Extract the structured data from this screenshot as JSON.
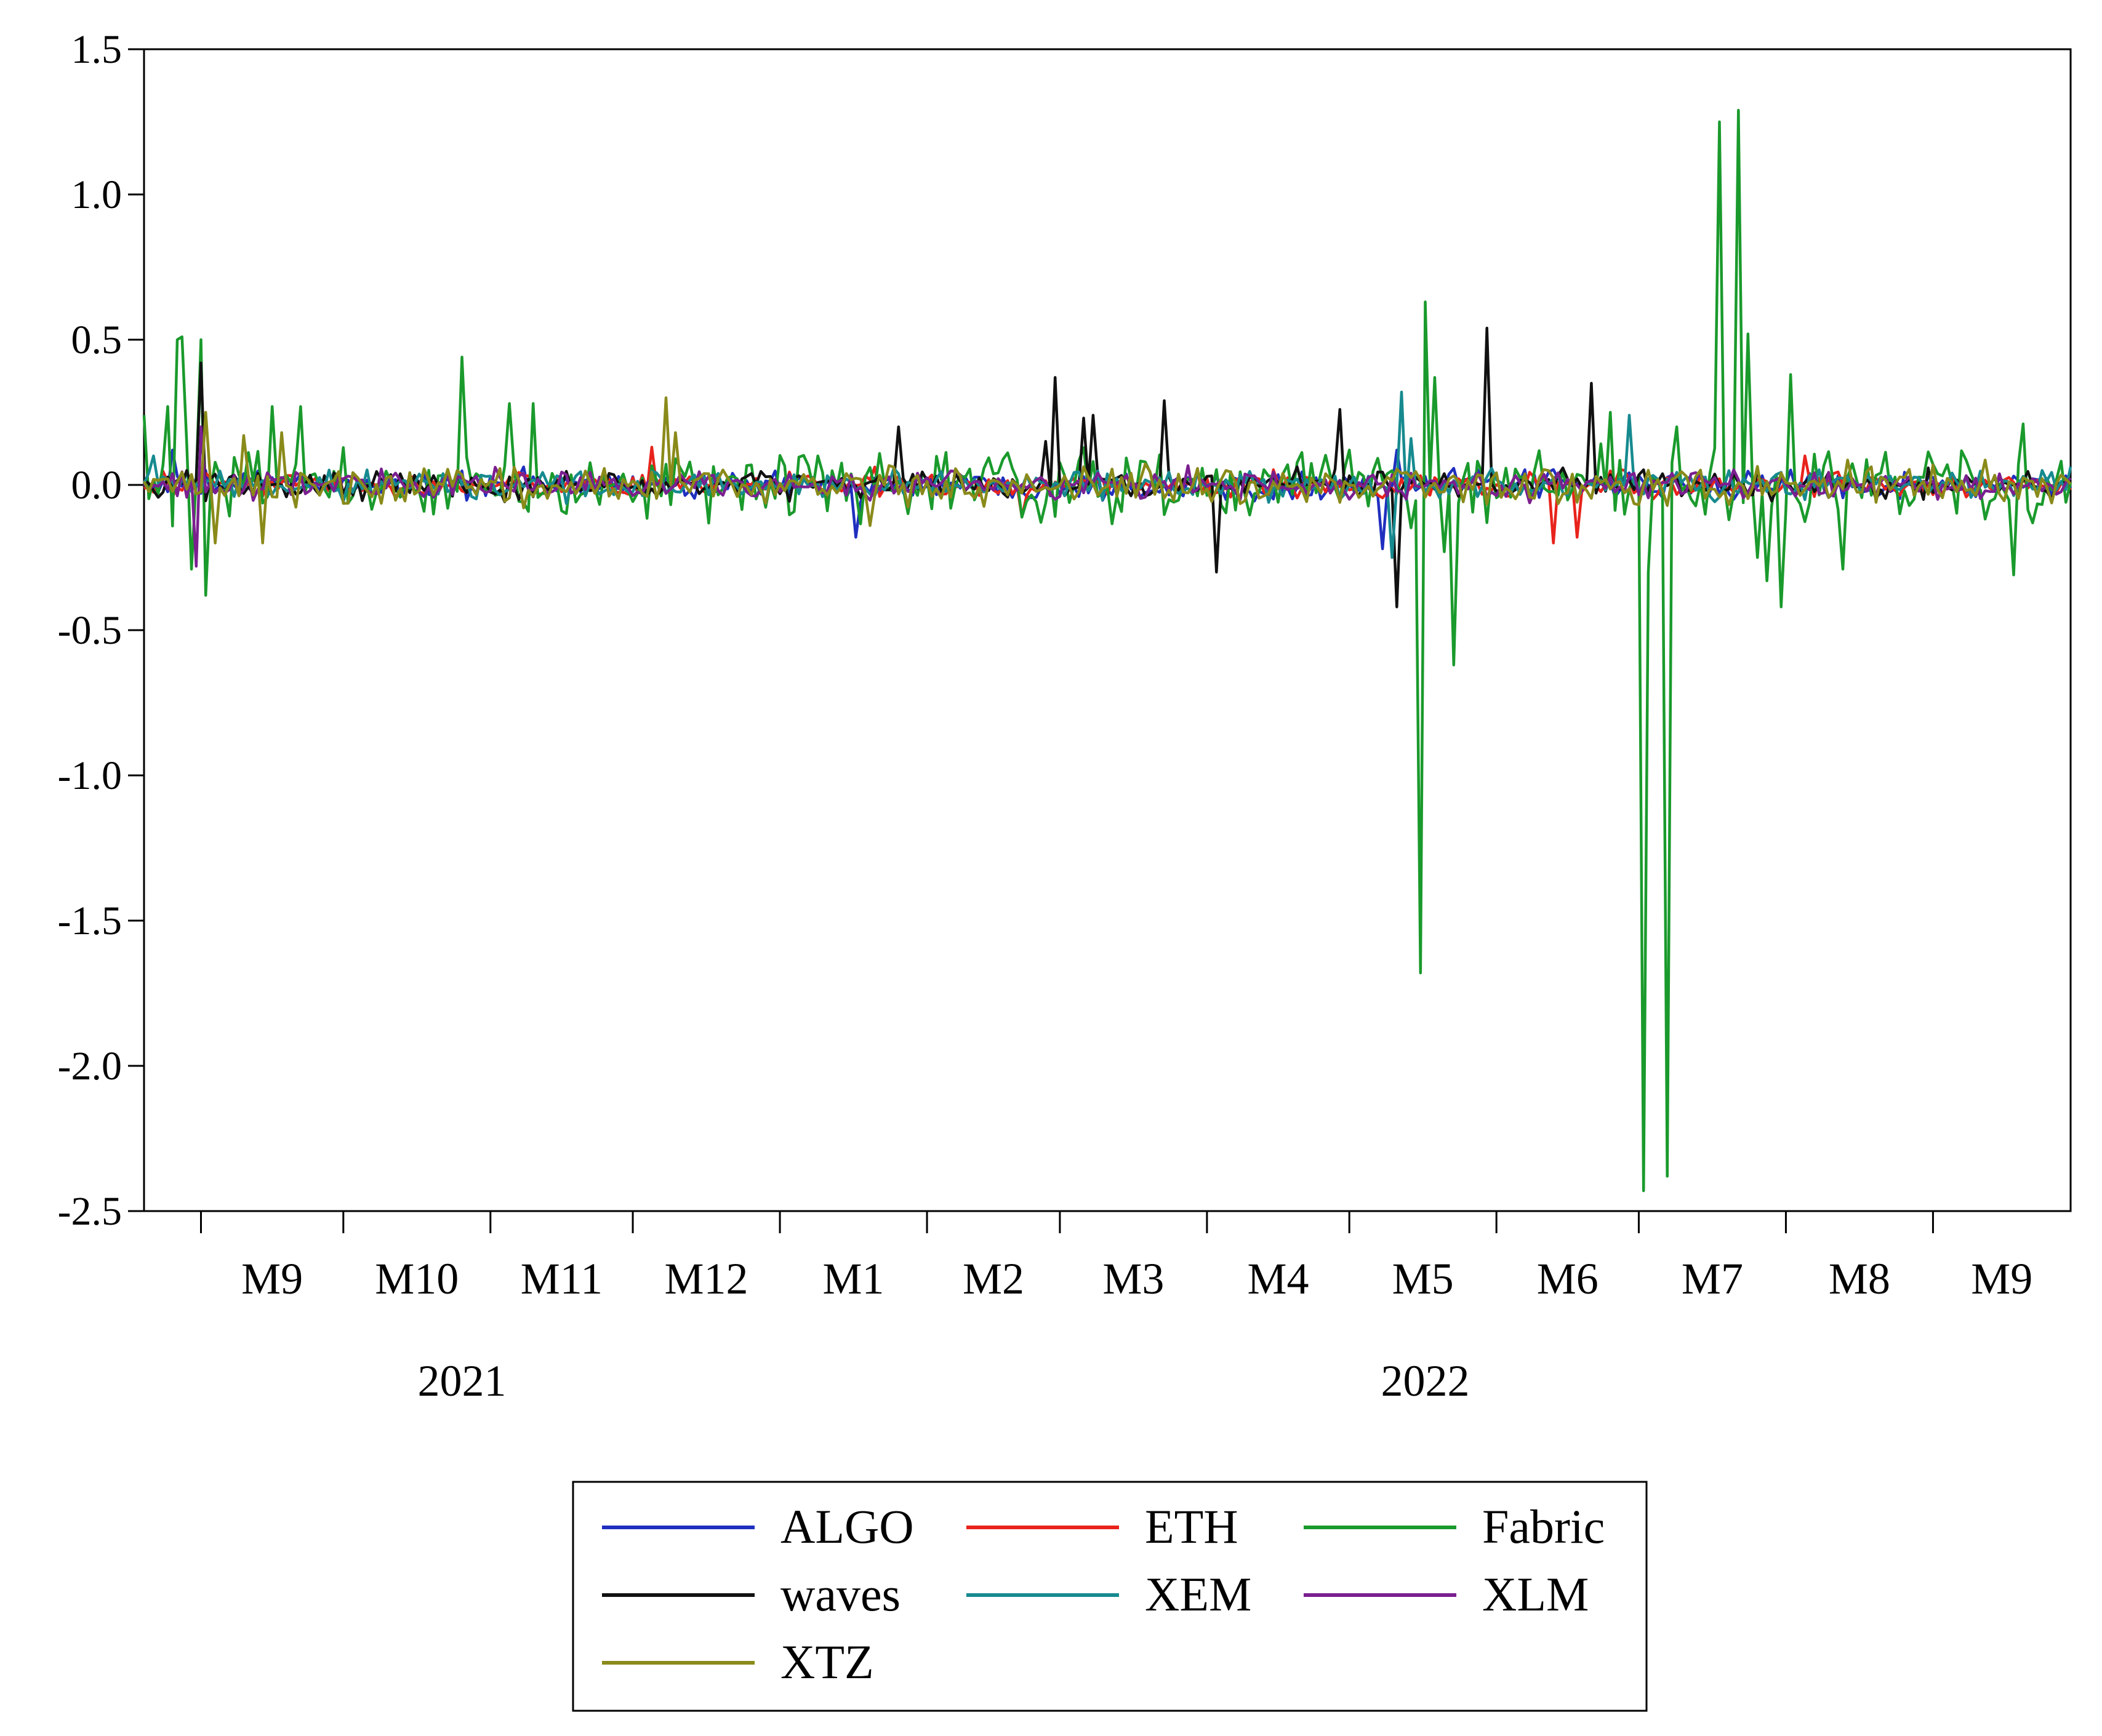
{
  "chart_data": {
    "type": "line",
    "title": "",
    "xlabel": "",
    "ylabel": "",
    "ylim": [
      -2.5,
      1.5
    ],
    "y_ticks": [
      "1.5",
      "1.0",
      "0.5",
      "0.0",
      "-0.5",
      "-1.0",
      "-1.5",
      "-2.0",
      "-2.5"
    ],
    "y_tick_values": [
      1.5,
      1.0,
      0.5,
      0.0,
      -0.5,
      -1.0,
      -1.5,
      -2.0,
      -2.5
    ],
    "x_range": [
      "2021-08-20",
      "2022-09-30"
    ],
    "month_labels": [
      "M9",
      "M10",
      "M11",
      "M12",
      "M1",
      "M2",
      "M3",
      "M4",
      "M5",
      "M6",
      "M7",
      "M8",
      "M9"
    ],
    "month_starts": [
      "2021-09-01",
      "2021-10-01",
      "2021-11-01",
      "2021-12-01",
      "2022-01-01",
      "2022-02-01",
      "2022-03-01",
      "2022-04-01",
      "2022-05-01",
      "2022-06-01",
      "2022-07-01",
      "2022-08-01",
      "2022-09-01",
      "2022-10-01"
    ],
    "year_labels": [
      "2021",
      "2022"
    ],
    "grid": false,
    "legend_position": "bottom-center",
    "series": [
      {
        "name": "ALGO",
        "color": "#1f2fbf",
        "base_amplitude": 0.045,
        "shocks": [
          {
            "date": "2021-08-26",
            "value": 0.12
          },
          {
            "date": "2022-01-17",
            "value": -0.18
          },
          {
            "date": "2022-05-08",
            "value": -0.22
          },
          {
            "date": "2022-05-11",
            "value": 0.12
          }
        ]
      },
      {
        "name": "ETH",
        "color": "#e8231b",
        "base_amplitude": 0.04,
        "shocks": [
          {
            "date": "2021-12-05",
            "value": 0.13
          },
          {
            "date": "2022-02-21",
            "value": -0.11
          },
          {
            "date": "2022-06-13",
            "value": -0.2
          },
          {
            "date": "2022-06-18",
            "value": -0.18
          },
          {
            "date": "2022-08-05",
            "value": 0.1
          }
        ]
      },
      {
        "name": "Fabric",
        "color": "#1a9a2c",
        "base_amplitude": 0.11,
        "shocks": [
          {
            "date": "2021-08-20",
            "value": 0.24
          },
          {
            "date": "2021-08-25",
            "value": 0.27
          },
          {
            "date": "2021-08-27",
            "value": 0.5
          },
          {
            "date": "2021-08-28",
            "value": 0.51
          },
          {
            "date": "2021-08-30",
            "value": -0.29
          },
          {
            "date": "2021-09-01",
            "value": 0.5
          },
          {
            "date": "2021-09-02",
            "value": -0.38
          },
          {
            "date": "2021-09-16",
            "value": 0.27
          },
          {
            "date": "2021-09-22",
            "value": 0.27
          },
          {
            "date": "2021-10-26",
            "value": 0.44
          },
          {
            "date": "2021-11-05",
            "value": 0.28
          },
          {
            "date": "2021-11-10",
            "value": 0.28
          },
          {
            "date": "2022-05-16",
            "value": -1.68
          },
          {
            "date": "2022-05-17",
            "value": 0.63
          },
          {
            "date": "2022-05-19",
            "value": 0.37
          },
          {
            "date": "2022-05-21",
            "value": -0.23
          },
          {
            "date": "2022-05-23",
            "value": -0.62
          },
          {
            "date": "2022-06-25",
            "value": 0.25
          },
          {
            "date": "2022-07-02",
            "value": -2.43
          },
          {
            "date": "2022-07-03",
            "value": -0.3
          },
          {
            "date": "2022-07-07",
            "value": -2.38
          },
          {
            "date": "2022-07-09",
            "value": 0.2
          },
          {
            "date": "2022-07-18",
            "value": 1.25
          },
          {
            "date": "2022-07-20",
            "value": -0.12
          },
          {
            "date": "2022-07-22",
            "value": 1.29
          },
          {
            "date": "2022-07-24",
            "value": 0.52
          },
          {
            "date": "2022-07-26",
            "value": -0.25
          },
          {
            "date": "2022-07-28",
            "value": -0.33
          },
          {
            "date": "2022-07-31",
            "value": -0.42
          },
          {
            "date": "2022-08-02",
            "value": 0.38
          },
          {
            "date": "2022-08-13",
            "value": -0.29
          },
          {
            "date": "2022-09-18",
            "value": -0.31
          },
          {
            "date": "2022-09-20",
            "value": 0.21
          }
        ]
      },
      {
        "name": "waves",
        "color": "#111111",
        "base_amplitude": 0.045,
        "shocks": [
          {
            "date": "2021-09-01",
            "value": 0.42
          },
          {
            "date": "2022-01-26",
            "value": 0.2
          },
          {
            "date": "2022-02-26",
            "value": 0.15
          },
          {
            "date": "2022-02-28",
            "value": 0.37
          },
          {
            "date": "2022-03-06",
            "value": 0.23
          },
          {
            "date": "2022-03-08",
            "value": 0.24
          },
          {
            "date": "2022-03-23",
            "value": 0.29
          },
          {
            "date": "2022-04-03",
            "value": -0.3
          },
          {
            "date": "2022-04-29",
            "value": 0.26
          },
          {
            "date": "2022-05-11",
            "value": -0.42
          },
          {
            "date": "2022-05-30",
            "value": 0.54
          },
          {
            "date": "2022-06-21",
            "value": 0.35
          }
        ]
      },
      {
        "name": "XEM",
        "color": "#168a8f",
        "base_amplitude": 0.045,
        "shocks": [
          {
            "date": "2021-08-22",
            "value": 0.1
          },
          {
            "date": "2022-05-10",
            "value": -0.25
          },
          {
            "date": "2022-05-12",
            "value": 0.32
          },
          {
            "date": "2022-05-14",
            "value": 0.16
          },
          {
            "date": "2022-06-29",
            "value": 0.24
          }
        ]
      },
      {
        "name": "XLM",
        "color": "#7b1f8f",
        "base_amplitude": 0.045,
        "shocks": [
          {
            "date": "2021-08-31",
            "value": -0.28
          },
          {
            "date": "2021-09-01",
            "value": 0.2
          }
        ]
      },
      {
        "name": "XTZ",
        "color": "#8a8a1a",
        "base_amplitude": 0.06,
        "shocks": [
          {
            "date": "2021-09-02",
            "value": 0.25
          },
          {
            "date": "2021-09-04",
            "value": -0.2
          },
          {
            "date": "2021-09-10",
            "value": 0.17
          },
          {
            "date": "2021-09-14",
            "value": -0.2
          },
          {
            "date": "2021-09-18",
            "value": 0.18
          },
          {
            "date": "2021-12-08",
            "value": 0.3
          },
          {
            "date": "2021-12-10",
            "value": 0.18
          },
          {
            "date": "2022-01-20",
            "value": -0.14
          }
        ]
      }
    ]
  }
}
